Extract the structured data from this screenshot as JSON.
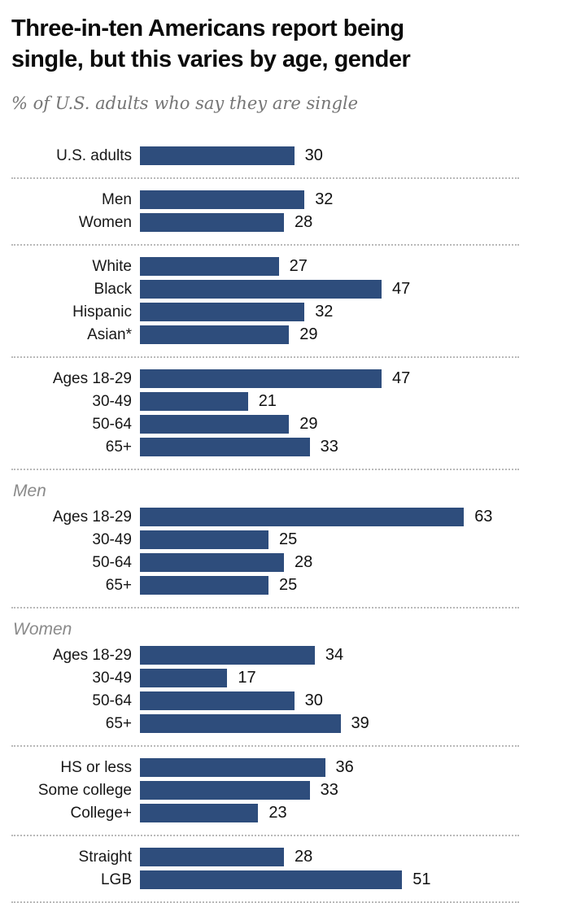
{
  "header": {
    "title_lines": [
      "Three-in-ten Americans report being",
      "single, but this varies by age, gender"
    ],
    "subtitle": "% of U.S. adults who say they are single"
  },
  "chart_data": {
    "type": "bar",
    "orientation": "horizontal",
    "title": "Three-in-ten Americans report being single, but this varies by age, gender",
    "subtitle": "% of U.S. adults who say they are single",
    "value_unit": "percent",
    "xlim": [
      0,
      70
    ],
    "bar_color": "#2e4d7c",
    "divider_style": "dotted",
    "groups": [
      {
        "label": "",
        "rows": [
          {
            "category": "U.S. adults",
            "value": 30
          }
        ]
      },
      {
        "label": "",
        "rows": [
          {
            "category": "Men",
            "value": 32
          },
          {
            "category": "Women",
            "value": 28
          }
        ]
      },
      {
        "label": "",
        "rows": [
          {
            "category": "White",
            "value": 27
          },
          {
            "category": "Black",
            "value": 47
          },
          {
            "category": "Hispanic",
            "value": 32
          },
          {
            "category": "Asian*",
            "value": 29
          }
        ]
      },
      {
        "label": "",
        "rows": [
          {
            "category": "Ages 18-29",
            "value": 47
          },
          {
            "category": "30-49",
            "value": 21
          },
          {
            "category": "50-64",
            "value": 29
          },
          {
            "category": "65+",
            "value": 33
          }
        ]
      },
      {
        "label": "Men",
        "rows": [
          {
            "category": "Ages 18-29",
            "value": 63
          },
          {
            "category": "30-49",
            "value": 25
          },
          {
            "category": "50-64",
            "value": 28
          },
          {
            "category": "65+",
            "value": 25
          }
        ]
      },
      {
        "label": "Women",
        "rows": [
          {
            "category": "Ages 18-29",
            "value": 34
          },
          {
            "category": "30-49",
            "value": 17
          },
          {
            "category": "50-64",
            "value": 30
          },
          {
            "category": "65+",
            "value": 39
          }
        ]
      },
      {
        "label": "",
        "rows": [
          {
            "category": "HS or less",
            "value": 36
          },
          {
            "category": "Some college",
            "value": 33
          },
          {
            "category": "College+",
            "value": 23
          }
        ]
      },
      {
        "label": "",
        "rows": [
          {
            "category": "Straight",
            "value": 28
          },
          {
            "category": "LGB",
            "value": 51
          }
        ]
      }
    ]
  }
}
